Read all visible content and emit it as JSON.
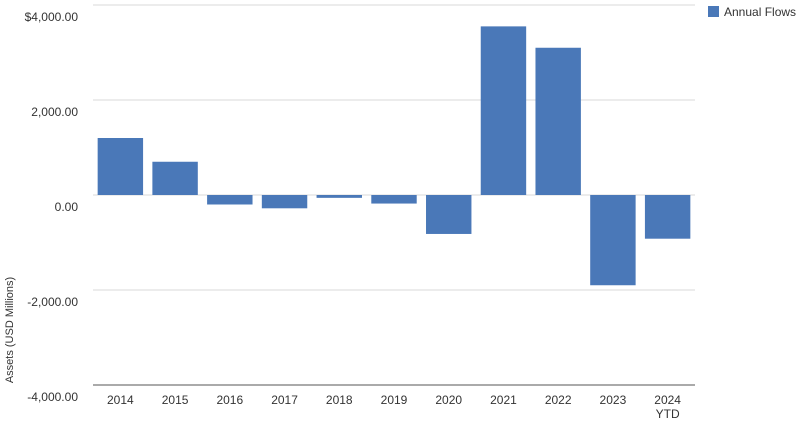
{
  "chart_data": {
    "type": "bar",
    "categories": [
      "2014",
      "2015",
      "2016",
      "2017",
      "2018",
      "2019",
      "2020",
      "2021",
      "2022",
      "2023",
      "2024 YTD"
    ],
    "series": [
      {
        "name": "Annual Flows",
        "color": "#4a78b8",
        "values": [
          1200,
          700,
          -200,
          -280,
          -60,
          -180,
          -820,
          3550,
          3100,
          -1900,
          -920
        ]
      }
    ],
    "ylabel": "Assets (USD Millions)",
    "xlabel": "",
    "ylim": [
      -4000,
      4000
    ],
    "yticks": [
      4000,
      2000,
      0,
      -2000,
      -4000
    ],
    "ytick_labels": [
      "$4,000.00",
      "2,000.00",
      "0.00",
      "-2,000.00",
      "-4,000.00"
    ],
    "grid": true,
    "legend_position": "top-right"
  }
}
